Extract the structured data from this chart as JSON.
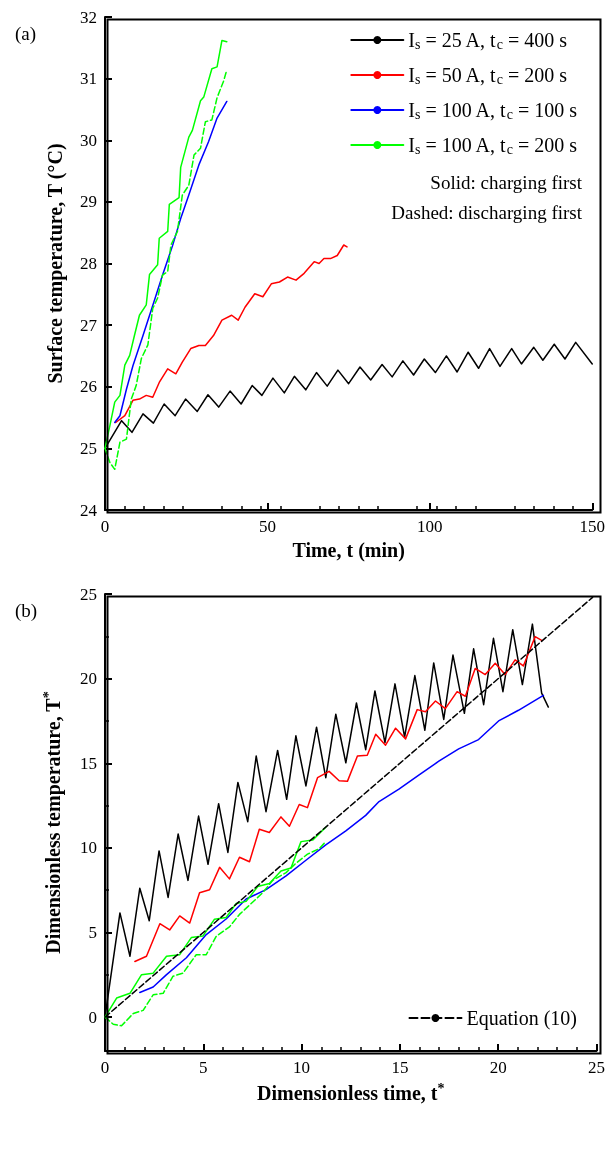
{
  "chart_data": [
    {
      "type": "line",
      "title": "(a)",
      "xlabel": "Time, t (min)",
      "ylabel": "Surface temperature, T (°C)",
      "xlim": [
        0,
        150
      ],
      "ylim": [
        24,
        32
      ],
      "xticks": [
        0,
        50,
        100,
        150
      ],
      "yticks": [
        24,
        25,
        26,
        27,
        28,
        29,
        30,
        31,
        32
      ],
      "grid": false,
      "legend": "top right",
      "marker": "none",
      "annotations": [
        "Solid: charging first",
        "Dashed: discharging first"
      ],
      "series": [
        {
          "name": "I$_{s}$ = 25 A, t$_{c}$ = 400 s",
          "color": "#000000",
          "x": [
            0,
            5.1,
            8.3,
            11.7,
            14.9,
            18.2,
            21.6,
            24.8,
            28.4,
            31.7,
            35.0,
            38.5,
            41.9,
            45.3,
            48.3,
            51.7,
            55.2,
            58.3,
            61.8,
            65.1,
            68.4,
            71.7,
            75.0,
            78.5,
            81.8,
            85.3,
            88.4,
            91.7,
            95.0,
            98.3,
            101.7,
            105.1,
            108.4,
            111.8,
            115.0,
            118.4,
            121.6,
            125.2,
            128.2,
            132.0,
            134.8,
            138.3,
            141.6,
            144.9,
            150
          ],
          "values": [
            25,
            25.45,
            25.26,
            25.56,
            25.41,
            25.72,
            25.53,
            25.8,
            25.6,
            25.87,
            25.67,
            25.93,
            25.72,
            26.02,
            25.86,
            26.14,
            25.9,
            26.17,
            25.95,
            26.23,
            26.01,
            26.27,
            26.05,
            26.32,
            26.11,
            26.36,
            26.16,
            26.42,
            26.19,
            26.45,
            26.23,
            26.5,
            26.24,
            26.56,
            26.3,
            26.62,
            26.33,
            26.62,
            26.37,
            26.64,
            26.43,
            26.69,
            26.45,
            26.72,
            26.37
          ]
        },
        {
          "name": "I$_{s}$ = 50 A, t$_{c}$ = 200 s",
          "color": "#ff0000",
          "x": [
            3.3,
            6.1,
            8.6,
            10.6,
            12.7,
            14.7,
            16.7,
            19.3,
            21.8,
            23.8,
            26.4,
            28.9,
            30.9,
            33.4,
            36.0,
            39.0,
            41.0,
            43.1,
            46.1,
            48.6,
            51.2,
            53.7,
            56.2,
            58.8,
            61.3,
            64.4,
            65.9,
            67.4,
            69.4,
            71.5,
            73.5,
            74.5
          ],
          "values": [
            25.42,
            25.53,
            25.78,
            25.8,
            25.86,
            25.83,
            26.07,
            26.29,
            26.21,
            26.4,
            26.62,
            26.67,
            26.67,
            26.83,
            27.08,
            27.16,
            27.08,
            27.29,
            27.51,
            27.46,
            27.67,
            27.7,
            27.78,
            27.73,
            27.84,
            28.03,
            28.0,
            28.08,
            28.08,
            28.13,
            28.3,
            28.27
          ]
        },
        {
          "name": "I$_{s}$ = 100 A, t$_{c}$ = 100 s",
          "color": "#0000ff",
          "x": [
            3.0,
            4.6,
            6.6,
            8.6,
            11.7,
            14.7,
            17.7,
            20.8,
            23.3,
            25.8,
            28.9,
            31.9,
            34.5,
            37.5
          ],
          "values": [
            25.42,
            25.53,
            25.96,
            26.34,
            26.83,
            27.32,
            27.81,
            28.29,
            28.73,
            29.11,
            29.6,
            29.98,
            30.36,
            30.63
          ]
        },
        {
          "name": "I$_{s}$ = 100 A, t$_{c}$ = 200 s",
          "color": "#00ff00",
          "x": [
            0,
            1.5,
            3.0,
            4.6,
            6.1,
            7.6,
            9.1,
            10.6,
            12.7,
            13.7,
            16.2,
            16.7,
            19.3,
            19.8,
            22.8,
            23.3,
            25.8,
            26.9,
            29.4,
            30.4,
            32.9,
            34.5,
            36.0,
            37.5
          ],
          "values": [
            25,
            25.37,
            25.75,
            25.86,
            26.35,
            26.51,
            26.84,
            27.16,
            27.33,
            27.82,
            27.98,
            28.41,
            28.52,
            28.96,
            29.07,
            29.56,
            30.05,
            30.16,
            30.64,
            30.7,
            31.16,
            31.19,
            31.62,
            31.6
          ]
        },
        {
          "color": "#00ff00",
          "line_style": "dashed",
          "x": [
            0,
            1.5,
            3.0,
            4.6,
            6.6,
            8.1,
            9.6,
            11.2,
            13.2,
            14.7,
            16.2,
            17.7,
            19.3,
            20.3,
            22.3,
            23.8,
            25.8,
            27.4,
            29.4,
            30.9,
            32.9,
            34.5,
            36.5,
            37.5
          ],
          "values": [
            25,
            24.77,
            24.66,
            25.1,
            25.15,
            25.8,
            26.02,
            26.46,
            26.68,
            27.27,
            27.44,
            27.81,
            27.87,
            28.3,
            28.52,
            29.11,
            29.27,
            29.76,
            29.87,
            30.3,
            30.33,
            30.69,
            30.96,
            31.14
          ]
        }
      ]
    },
    {
      "type": "line",
      "title": "(b)",
      "xlabel": "Dimensionless time, t$^{*}$",
      "ylabel": "Dimensionless temperature, T$^{*}$",
      "xlim": [
        0,
        25
      ],
      "ylim": [
        -2,
        25
      ],
      "xticks": [
        0,
        5,
        10,
        15,
        20,
        25
      ],
      "yticks": [
        0,
        5,
        10,
        15,
        20,
        25
      ],
      "grid": false,
      "legend": "bottom right",
      "marker": "none",
      "series": [
        {
          "color": "#000000",
          "x": [
            0,
            0.76,
            1.27,
            1.77,
            2.25,
            2.75,
            3.21,
            3.72,
            4.22,
            4.76,
            5.24,
            5.78,
            6.25,
            6.76,
            7.26,
            7.69,
            8.19,
            8.78,
            9.24,
            9.71,
            10.22,
            10.76,
            11.23,
            11.74,
            12.25,
            12.79,
            13.26,
            13.73,
            14.24,
            14.75,
            15.24,
            15.76,
            16.27,
            16.72,
            17.23,
            17.7,
            18.28,
            18.75,
            19.26,
            19.76,
            20.24,
            20.74,
            21.23,
            21.74,
            22.21,
            22.55
          ],
          "values": [
            0,
            6.16,
            3.6,
            7.62,
            5.7,
            9.82,
            7.07,
            10.82,
            8.08,
            11.88,
            9.03,
            12.61,
            9.73,
            13.87,
            11.55,
            15.43,
            12.14,
            15.76,
            12.87,
            16.62,
            13.66,
            17.13,
            14.15,
            17.9,
            15.03,
            18.56,
            15.8,
            19.27,
            16.22,
            19.69,
            16.54,
            20.18,
            16.95,
            20.93,
            17.59,
            21.39,
            17.95,
            21.76,
            18.46,
            22.38,
            19.23,
            22.89,
            19.65,
            23.22,
            19.14,
            18.32
          ]
        },
        {
          "color": "#ff0000",
          "x": [
            1.52,
            2.11,
            2.79,
            3.29,
            3.8,
            4.31,
            4.81,
            5.32,
            5.83,
            6.33,
            6.84,
            7.35,
            7.85,
            8.36,
            8.95,
            9.38,
            9.88,
            10.3,
            10.81,
            11.4,
            11.91,
            12.33,
            12.84,
            13.34,
            13.77,
            14.27,
            14.78,
            15.29,
            15.88,
            16.3,
            16.81,
            17.31,
            17.91,
            18.33,
            18.83,
            19.34,
            19.85,
            20.35,
            20.86,
            21.28,
            21.88,
            22.21
          ],
          "values": [
            3.29,
            3.6,
            5.52,
            5.15,
            5.98,
            5.56,
            7.35,
            7.53,
            8.85,
            8.17,
            9.45,
            9.18,
            11.1,
            10.91,
            11.83,
            11.28,
            12.56,
            12.38,
            14.15,
            14.52,
            13.97,
            13.93,
            15.43,
            15.47,
            16.71,
            16.07,
            17.07,
            16.44,
            18.17,
            18.04,
            18.68,
            18.23,
            19.23,
            18.96,
            20.6,
            20.24,
            20.91,
            20.24,
            21.11,
            20.75,
            22.48,
            22.26
          ]
        },
        {
          "color": "#0000ff",
          "x": [
            1.77,
            2.45,
            3.13,
            4.14,
            5.15,
            6.16,
            7.18,
            8.19,
            9.21,
            10.22,
            11.23,
            12.25,
            13.26,
            13.94,
            14.95,
            15.96,
            16.98,
            17.99,
            19.0,
            20.02,
            21.03,
            22.3
          ],
          "values": [
            1.46,
            1.78,
            2.51,
            3.51,
            4.88,
            5.8,
            6.98,
            7.53,
            8.35,
            9.27,
            10.18,
            11.0,
            11.92,
            12.74,
            13.47,
            14.3,
            15.12,
            15.85,
            16.4,
            17.5,
            18.13,
            19.01
          ]
        },
        {
          "color": "#00ff00",
          "x": [
            0,
            0.59,
            1.27,
            1.86,
            2.45,
            3.13,
            3.8,
            4.39,
            4.98,
            5.57,
            6.16,
            6.67,
            7.18,
            7.77,
            8.36,
            8.95,
            9.46,
            9.97,
            10.56,
            11.23
          ],
          "values": [
            0,
            1.13,
            1.41,
            2.51,
            2.6,
            3.6,
            3.69,
            4.7,
            4.79,
            5.79,
            5.89,
            6.71,
            6.84,
            7.72,
            7.9,
            8.63,
            8.81,
            10.37,
            10.46,
            11.22
          ]
        },
        {
          "color": "#00ff00",
          "line_style": "dashed",
          "x": [
            0,
            0.42,
            0.84,
            1.44,
            1.94,
            2.45,
            2.96,
            3.46,
            3.97,
            4.64,
            5.15,
            5.66,
            6.33,
            6.84,
            7.35,
            8.02,
            8.53,
            9.21,
            9.71,
            10.3,
            10.89,
            11.23
          ],
          "values": [
            0,
            -0.42,
            -0.51,
            0.22,
            0.4,
            1.32,
            1.41,
            2.42,
            2.6,
            3.69,
            3.69,
            4.78,
            5.33,
            6.07,
            6.62,
            7.35,
            8.08,
            8.54,
            9.09,
            9.63,
            9.95,
            10.37
          ]
        },
        {
          "name": "Equation (10)",
          "color": "#000000",
          "line_style": "dashed",
          "x": [
            0,
            24.8
          ],
          "values": [
            0,
            24.8
          ]
        }
      ]
    }
  ]
}
